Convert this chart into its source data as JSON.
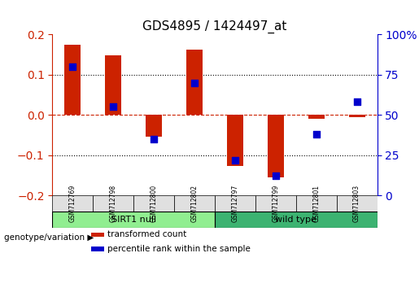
{
  "title": "GDS4895 / 1424497_at",
  "samples": [
    "GSM712769",
    "GSM712798",
    "GSM712800",
    "GSM712802",
    "GSM712797",
    "GSM712799",
    "GSM712801",
    "GSM712803"
  ],
  "red_values": [
    0.175,
    0.148,
    -0.055,
    0.163,
    -0.128,
    -0.155,
    -0.01,
    -0.005
  ],
  "blue_values_raw": [
    80,
    55,
    35,
    70,
    22,
    12,
    38,
    58
  ],
  "groups": [
    {
      "label": "SIRT1 null",
      "start": 0,
      "end": 4,
      "color": "#90EE90"
    },
    {
      "label": "wild type",
      "start": 4,
      "end": 8,
      "color": "#3CB371"
    }
  ],
  "genotype_label": "genotype/variation",
  "ylim_left": [
    -0.2,
    0.2
  ],
  "ylim_right": [
    0,
    100
  ],
  "yticks_left": [
    -0.2,
    -0.1,
    0.0,
    0.1,
    0.2
  ],
  "yticks_right": [
    0,
    25,
    50,
    75,
    100
  ],
  "ytick_labels_right": [
    "0",
    "25",
    "50",
    "75",
    "100%"
  ],
  "red_color": "#CC2200",
  "blue_color": "#0000CC",
  "dashed_zero_color": "#CC2200",
  "grid_color": "#000000",
  "bar_width": 0.4,
  "legend_items": [
    {
      "color": "#CC2200",
      "label": "transformed count"
    },
    {
      "color": "#0000CC",
      "label": "percentile rank within the sample"
    }
  ]
}
